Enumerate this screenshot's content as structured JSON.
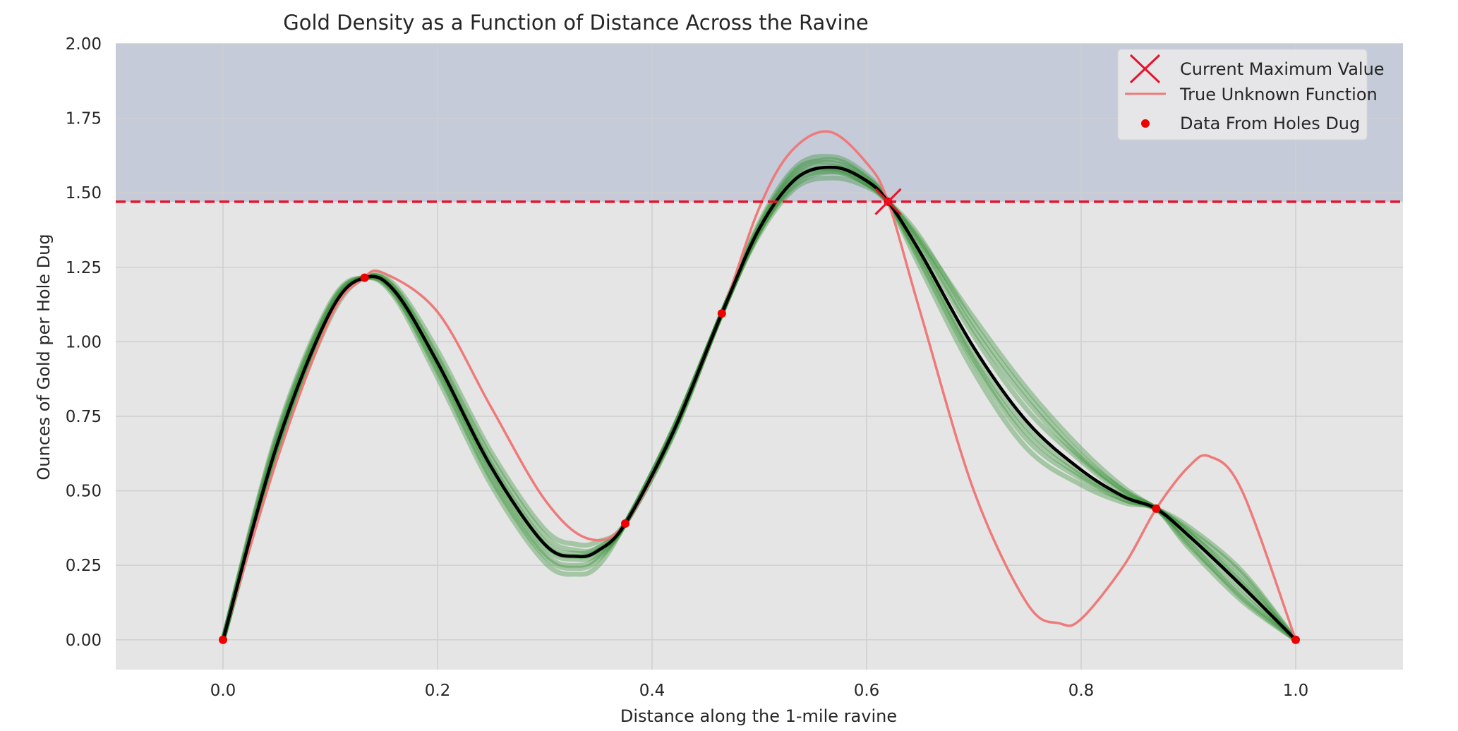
{
  "chart_data": {
    "type": "line",
    "title": "Gold Density as a Function of Distance Across the Ravine",
    "xlabel": "Distance along the 1-mile ravine",
    "ylabel": "Ounces of Gold per Hole Dug",
    "xlim": [
      -0.1,
      1.1
    ],
    "ylim": [
      -0.1,
      2.0
    ],
    "xticks": [
      0.0,
      0.2,
      0.4,
      0.6,
      0.8,
      1.0
    ],
    "xtick_labels": [
      "0.0",
      "0.2",
      "0.4",
      "0.6",
      "0.8",
      "1.0"
    ],
    "yticks": [
      0.0,
      0.25,
      0.5,
      0.75,
      1.0,
      1.25,
      1.5,
      1.75,
      2.0
    ],
    "ytick_labels": [
      "0.00",
      "0.25",
      "0.50",
      "0.75",
      "1.00",
      "1.25",
      "1.50",
      "1.75",
      "2.00"
    ],
    "grid": true,
    "legend_position": "top-right",
    "legend": {
      "max": "Current Maximum Value",
      "true_fn": "True Unknown Function",
      "holes": "Data From Holes Dug"
    },
    "current_maximum": {
      "x": 0.62,
      "y": 1.47
    },
    "shaded_region_above": 1.47,
    "colors": {
      "axes_bg": "#e5e5e5",
      "improvement_region": "#c5cbd8",
      "grid": "#cfcfcf",
      "true_function": "#ee7a7a",
      "max_line": "#e8132b",
      "data_points": "#ee0000",
      "mean_curve": "#000000",
      "samples": "#2e8b2e",
      "text": "#262626"
    },
    "data_points": {
      "x": [
        0.0,
        0.132,
        0.375,
        0.465,
        0.62,
        0.87,
        1.0
      ],
      "y": [
        0.0,
        1.215,
        0.39,
        1.095,
        1.47,
        0.44,
        0.0
      ]
    },
    "true_function": {
      "x": [
        0.0,
        0.05,
        0.1,
        0.13,
        0.15,
        0.2,
        0.25,
        0.3,
        0.34,
        0.375,
        0.42,
        0.465,
        0.5,
        0.53,
        0.565,
        0.6,
        0.62,
        0.65,
        0.7,
        0.75,
        0.78,
        0.8,
        0.84,
        0.87,
        0.9,
        0.92,
        0.95,
        1.0
      ],
      "y": [
        0.0,
        0.6,
        1.08,
        1.21,
        1.23,
        1.1,
        0.78,
        0.47,
        0.34,
        0.39,
        0.7,
        1.095,
        1.45,
        1.64,
        1.705,
        1.6,
        1.47,
        1.1,
        0.5,
        0.12,
        0.055,
        0.07,
        0.25,
        0.44,
        0.58,
        0.615,
        0.5,
        0.0
      ]
    },
    "mean_curve": {
      "x": [
        0.0,
        0.05,
        0.1,
        0.132,
        0.16,
        0.2,
        0.25,
        0.3,
        0.33,
        0.35,
        0.375,
        0.42,
        0.465,
        0.5,
        0.535,
        0.57,
        0.6,
        0.62,
        0.65,
        0.7,
        0.75,
        0.8,
        0.84,
        0.87,
        0.9,
        0.95,
        1.0
      ],
      "y": [
        0.0,
        0.65,
        1.1,
        1.215,
        1.17,
        0.93,
        0.58,
        0.32,
        0.28,
        0.3,
        0.39,
        0.7,
        1.095,
        1.38,
        1.55,
        1.585,
        1.54,
        1.47,
        1.3,
        0.98,
        0.73,
        0.57,
        0.48,
        0.44,
        0.35,
        0.18,
        0.0
      ]
    },
    "posterior_samples": [
      {
        "y": [
          0.0,
          0.69,
          1.13,
          1.215,
          1.15,
          0.88,
          0.52,
          0.26,
          0.22,
          0.25,
          0.39,
          0.71,
          1.095,
          1.4,
          1.59,
          1.62,
          1.56,
          1.47,
          1.25,
          0.9,
          0.64,
          0.52,
          0.46,
          0.44,
          0.33,
          0.14,
          0.0
        ]
      },
      {
        "y": [
          0.0,
          0.62,
          1.08,
          1.215,
          1.19,
          0.97,
          0.63,
          0.37,
          0.32,
          0.33,
          0.39,
          0.69,
          1.095,
          1.36,
          1.52,
          1.55,
          1.52,
          1.47,
          1.35,
          1.06,
          0.82,
          0.62,
          0.5,
          0.44,
          0.37,
          0.22,
          0.0
        ]
      },
      {
        "y": [
          0.0,
          0.67,
          1.12,
          1.215,
          1.16,
          0.91,
          0.55,
          0.29,
          0.25,
          0.28,
          0.39,
          0.7,
          1.095,
          1.39,
          1.57,
          1.61,
          1.55,
          1.47,
          1.28,
          0.94,
          0.69,
          0.55,
          0.47,
          0.44,
          0.36,
          0.2,
          0.0
        ]
      },
      {
        "y": [
          0.0,
          0.63,
          1.09,
          1.215,
          1.18,
          0.95,
          0.61,
          0.35,
          0.3,
          0.31,
          0.39,
          0.69,
          1.095,
          1.37,
          1.53,
          1.57,
          1.53,
          1.47,
          1.32,
          1.02,
          0.77,
          0.6,
          0.49,
          0.44,
          0.32,
          0.15,
          0.0
        ]
      },
      {
        "y": [
          0.0,
          0.66,
          1.11,
          1.215,
          1.17,
          0.92,
          0.57,
          0.31,
          0.27,
          0.29,
          0.39,
          0.71,
          1.095,
          1.38,
          1.56,
          1.59,
          1.54,
          1.47,
          1.29,
          0.96,
          0.71,
          0.56,
          0.48,
          0.44,
          0.38,
          0.23,
          0.0
        ]
      },
      {
        "y": [
          0.0,
          0.64,
          1.1,
          1.215,
          1.18,
          0.94,
          0.59,
          0.33,
          0.29,
          0.31,
          0.39,
          0.7,
          1.095,
          1.37,
          1.55,
          1.58,
          1.53,
          1.47,
          1.33,
          1.04,
          0.8,
          0.61,
          0.5,
          0.44,
          0.34,
          0.17,
          0.0
        ]
      },
      {
        "y": [
          0.0,
          0.68,
          1.12,
          1.215,
          1.16,
          0.9,
          0.54,
          0.28,
          0.24,
          0.27,
          0.39,
          0.71,
          1.095,
          1.39,
          1.58,
          1.6,
          1.55,
          1.47,
          1.27,
          0.93,
          0.67,
          0.54,
          0.47,
          0.44,
          0.31,
          0.13,
          0.0
        ]
      },
      {
        "y": [
          0.0,
          0.65,
          1.1,
          1.215,
          1.17,
          0.93,
          0.58,
          0.32,
          0.28,
          0.3,
          0.39,
          0.7,
          1.095,
          1.37,
          1.54,
          1.57,
          1.53,
          1.47,
          1.34,
          1.08,
          0.84,
          0.64,
          0.51,
          0.44,
          0.36,
          0.19,
          0.0
        ]
      }
    ]
  }
}
